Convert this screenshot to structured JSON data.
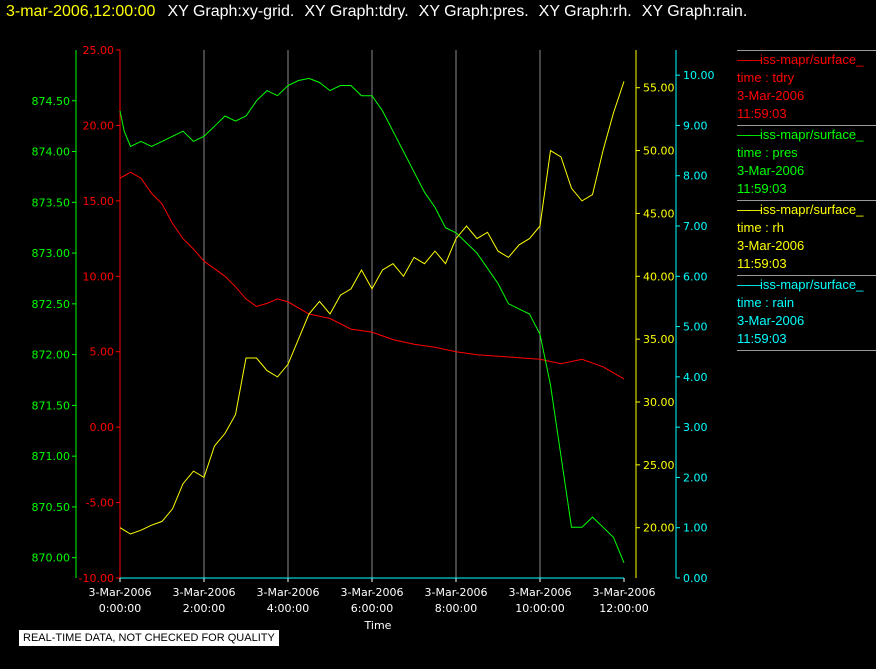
{
  "header": {
    "timestamp": "3-mar-2006,12:00:00",
    "items": [
      "XY Graph:xy-grid.",
      "XY Graph:tdry.",
      "XY Graph:pres.",
      "XY Graph:rh.",
      "XY Graph:rain."
    ]
  },
  "footer_note": "REAL-TIME DATA, NOT CHECKED FOR QUALITY",
  "legend": [
    {
      "name": "iss-mapr/surface_",
      "field": "time : tdry",
      "date": "3-Mar-2006",
      "time": "11:59:03",
      "color": "#ff0000"
    },
    {
      "name": "iss-mapr/surface_",
      "field": "time : pres",
      "date": "3-Mar-2006",
      "time": "11:59:03",
      "color": "#00ff00"
    },
    {
      "name": "iss-mapr/surface_",
      "field": "time : rh",
      "date": "3-Mar-2006",
      "time": "11:59:03",
      "color": "#ffff00"
    },
    {
      "name": "iss-mapr/surface_",
      "field": "time : rain",
      "date": "3-Mar-2006",
      "time": "11:59:03",
      "color": "#00ffff"
    }
  ],
  "chart_data": {
    "type": "line",
    "xlabel": "Time",
    "x_ticks": [
      {
        "date": "3-Mar-2006",
        "time": "0:00:00"
      },
      {
        "date": "3-Mar-2006",
        "time": "2:00:00"
      },
      {
        "date": "3-Mar-2006",
        "time": "4:00:00"
      },
      {
        "date": "3-Mar-2006",
        "time": "6:00:00"
      },
      {
        "date": "3-Mar-2006",
        "time": "8:00:00"
      },
      {
        "date": "3-Mar-2006",
        "time": "10:00:00"
      },
      {
        "date": "3-Mar-2006",
        "time": "12:00:00"
      }
    ],
    "x_range_hours": [
      0,
      12
    ],
    "grid": "vertical",
    "axes": {
      "pres": {
        "color": "#00ff00",
        "ylim": [
          869.8,
          875.0
        ],
        "ticks": [
          "870.00",
          "870.50",
          "871.00",
          "871.50",
          "872.00",
          "872.50",
          "873.00",
          "873.50",
          "874.00",
          "874.50"
        ]
      },
      "tdry": {
        "color": "#ff0000",
        "ylim": [
          -10.0,
          25.0
        ],
        "ticks": [
          "-10.00",
          "-5.00",
          "0.00",
          "5.00",
          "10.00",
          "15.00",
          "20.00",
          "25.00"
        ]
      },
      "rh": {
        "color": "#ffff00",
        "ylim": [
          16.0,
          58.0
        ],
        "ticks": [
          "20.00",
          "25.00",
          "30.00",
          "35.00",
          "40.00",
          "45.00",
          "50.00",
          "55.00"
        ]
      },
      "rain": {
        "color": "#00ffff",
        "ylim": [
          0.0,
          10.5
        ],
        "ticks": [
          "0.00",
          "1.00",
          "2.00",
          "3.00",
          "4.00",
          "5.00",
          "6.00",
          "7.00",
          "8.00",
          "9.00",
          "10.00"
        ]
      }
    },
    "series": [
      {
        "name": "tdry",
        "axis": "tdry",
        "color": "#ff0000",
        "x": [
          0,
          0.25,
          0.5,
          0.75,
          1,
          1.25,
          1.5,
          1.75,
          2,
          2.25,
          2.5,
          2.75,
          3,
          3.25,
          3.5,
          3.75,
          4,
          4.5,
          5,
          5.5,
          6,
          6.5,
          7,
          7.5,
          8,
          8.5,
          9,
          9.5,
          10,
          10.5,
          11,
          11.5,
          12
        ],
        "y": [
          16.5,
          16.9,
          16.5,
          15.5,
          14.8,
          13.5,
          12.5,
          11.8,
          11.0,
          10.5,
          10.0,
          9.3,
          8.5,
          8.0,
          8.2,
          8.5,
          8.3,
          7.5,
          7.2,
          6.5,
          6.3,
          5.8,
          5.5,
          5.3,
          5.0,
          4.8,
          4.7,
          4.6,
          4.5,
          4.2,
          4.5,
          4.0,
          3.2
        ]
      },
      {
        "name": "pres",
        "axis": "pres",
        "color": "#00ff00",
        "x": [
          0,
          0.1,
          0.25,
          0.5,
          0.75,
          1,
          1.25,
          1.5,
          1.75,
          2,
          2.25,
          2.5,
          2.75,
          3,
          3.25,
          3.5,
          3.75,
          4,
          4.25,
          4.5,
          4.75,
          5,
          5.25,
          5.5,
          5.75,
          6,
          6.25,
          6.5,
          6.75,
          7,
          7.25,
          7.5,
          7.75,
          8,
          8.25,
          8.5,
          8.75,
          9,
          9.25,
          9.5,
          9.75,
          10,
          10.25,
          10.5,
          10.75,
          11,
          11.25,
          11.5,
          11.75,
          12
        ],
        "y": [
          874.4,
          874.2,
          874.05,
          874.1,
          874.05,
          874.1,
          874.15,
          874.2,
          874.1,
          874.15,
          874.25,
          874.35,
          874.3,
          874.35,
          874.5,
          874.6,
          874.55,
          874.65,
          874.7,
          874.72,
          874.68,
          874.6,
          874.65,
          874.65,
          874.55,
          874.55,
          874.4,
          874.2,
          874.0,
          873.8,
          873.6,
          873.45,
          873.25,
          873.2,
          873.1,
          873.0,
          872.85,
          872.7,
          872.5,
          872.45,
          872.4,
          872.2,
          871.7,
          871.0,
          870.3,
          870.3,
          870.4,
          870.3,
          870.2,
          869.95
        ]
      },
      {
        "name": "rh",
        "axis": "rh",
        "color": "#ffff00",
        "x": [
          0,
          0.25,
          0.5,
          0.75,
          1,
          1.25,
          1.5,
          1.75,
          2,
          2.25,
          2.5,
          2.75,
          3,
          3.25,
          3.5,
          3.75,
          4,
          4.25,
          4.5,
          4.75,
          5,
          5.25,
          5.5,
          5.75,
          6,
          6.25,
          6.5,
          6.75,
          7,
          7.25,
          7.5,
          7.75,
          8,
          8.25,
          8.5,
          8.75,
          9,
          9.25,
          9.5,
          9.75,
          10,
          10.25,
          10.5,
          10.75,
          11,
          11.25,
          11.5,
          11.75,
          12
        ],
        "y": [
          20.0,
          19.5,
          19.8,
          20.2,
          20.5,
          21.5,
          23.5,
          24.5,
          24.0,
          26.5,
          27.5,
          29.0,
          33.5,
          33.5,
          32.5,
          32.0,
          33.0,
          35.0,
          37.0,
          38.0,
          37.0,
          38.5,
          39.0,
          40.5,
          39.0,
          40.5,
          41.0,
          40.0,
          41.5,
          41.0,
          42.0,
          41.0,
          43.0,
          44.0,
          43.0,
          43.5,
          42.0,
          41.5,
          42.5,
          43.0,
          44.0,
          50.0,
          49.5,
          47.0,
          46.0,
          46.5,
          50.0,
          53.0,
          55.5
        ]
      },
      {
        "name": "rain",
        "axis": "rain",
        "color": "#00ffff",
        "x": [
          0,
          12
        ],
        "y": [
          0.0,
          0.0
        ]
      }
    ]
  }
}
